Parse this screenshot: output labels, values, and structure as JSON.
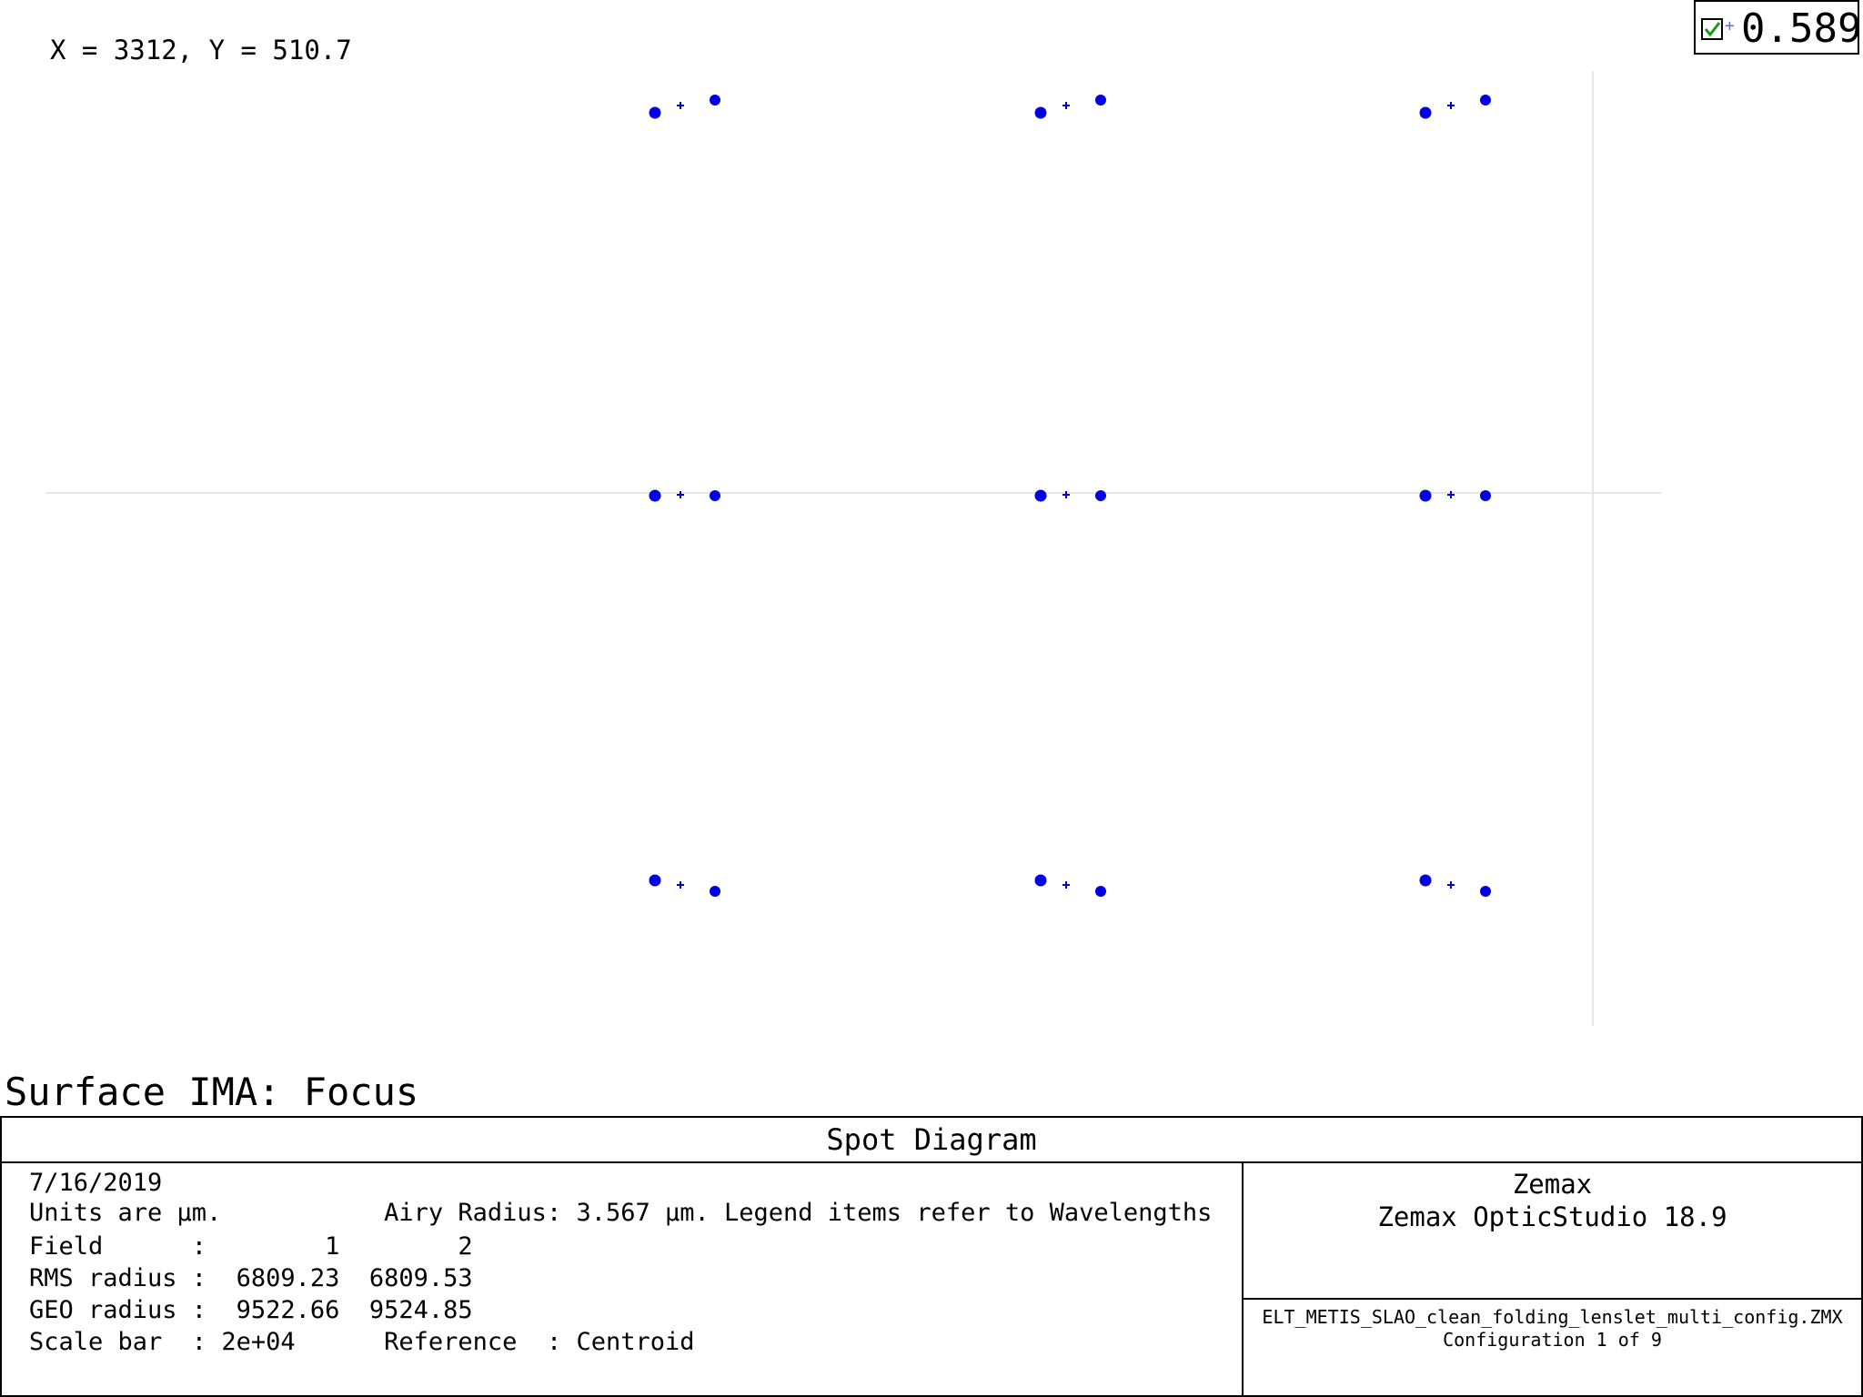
{
  "header": {
    "cursor_readout": "X = 3312, Y = 510.7",
    "legend_value": "0.589",
    "legend_checked": true
  },
  "plot": {
    "axis_color": "#e6e6e6",
    "spot_color": "#0000e0"
  },
  "surface_title": "Surface IMA: Focus",
  "table": {
    "title": "Spot Diagram",
    "date": "7/16/2019",
    "units_line": "Units are µm.           Airy Radius: 3.567 µm. Legend items refer to Wavelengths",
    "field_line": "Field      :        1        2",
    "rms_line": "RMS radius :  6809.23  6809.53",
    "geo_line": "GEO radius :  9522.66  9524.85",
    "scale_line": "Scale bar  : 2e+04      Reference  : Centroid",
    "company": "Zemax",
    "product": "Zemax OpticStudio 18.9",
    "filename": "ELT_METIS_SLAO_clean_folding_lenslet_multi_config.ZMX",
    "configuration": "Configuration 1 of 9"
  }
}
